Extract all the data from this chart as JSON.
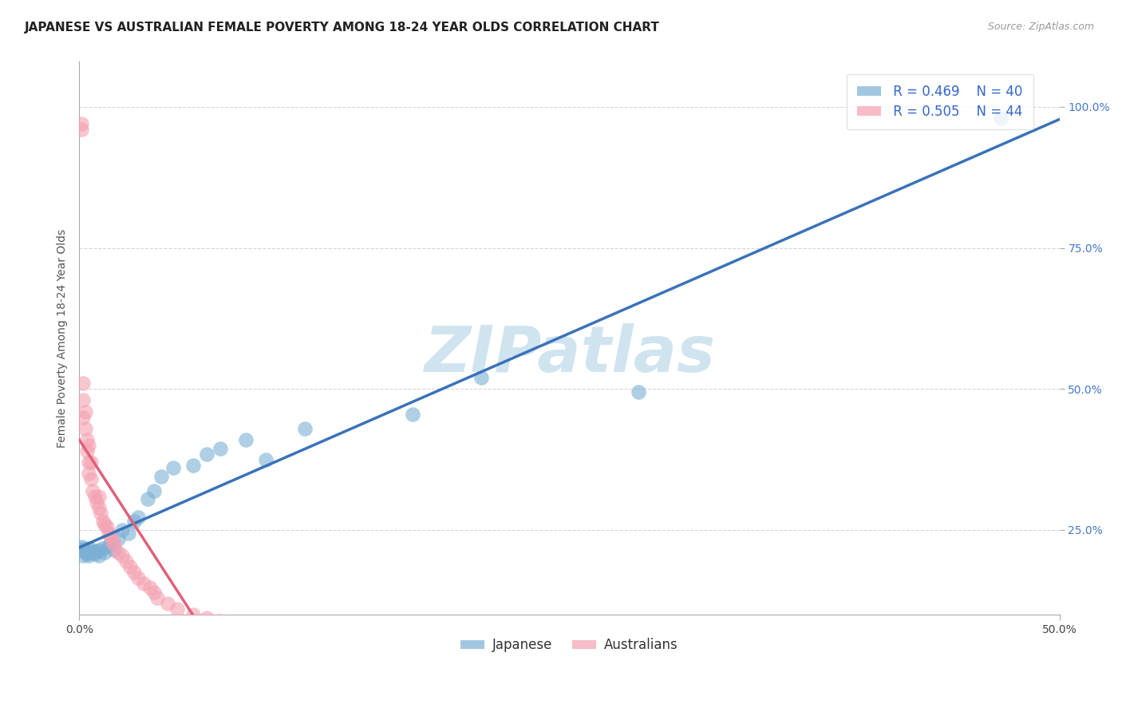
{
  "title": "JAPANESE VS AUSTRALIAN FEMALE POVERTY AMONG 18-24 YEAR OLDS CORRELATION CHART",
  "source": "Source: ZipAtlas.com",
  "ylabel": "Female Poverty Among 18-24 Year Olds",
  "xlim": [
    0.0,
    0.5
  ],
  "ylim": [
    0.1,
    1.08
  ],
  "xticks": [
    0.0,
    0.5
  ],
  "xtick_labels": [
    "0.0%",
    "50.0%"
  ],
  "yticks": [
    0.25,
    0.5,
    0.75,
    1.0
  ],
  "ytick_labels": [
    "25.0%",
    "50.0%",
    "75.0%",
    "100.0%"
  ],
  "R_japanese": 0.469,
  "N_japanese": 40,
  "R_australians": 0.505,
  "N_australians": 44,
  "japanese_color": "#7BAFD4",
  "australian_color": "#F4A0B0",
  "japanese_line_color": "#3A72B8",
  "australian_line_color": "#E0607A",
  "watermark": "ZIPatlas",
  "watermark_color": "#D0E4F0",
  "background_color": "#FFFFFF",
  "title_fontsize": 11,
  "axis_fontsize": 10,
  "tick_fontsize": 10,
  "legend_fontsize": 12,
  "source_fontsize": 9
}
